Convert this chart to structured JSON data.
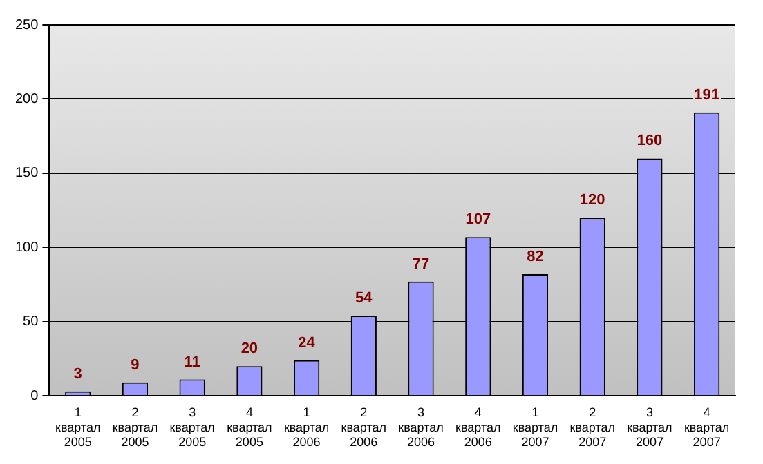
{
  "chart_data": {
    "type": "bar",
    "categories": [
      "1 квартал 2005",
      "2 квартал 2005",
      "3 квартал 2005",
      "4 квартал 2005",
      "1 квартал 2006",
      "2 квартал 2006",
      "3 квартал 2006",
      "4 квартал 2006",
      "1 квартал 2007",
      "2 квартал 2007",
      "3 квартал 2007",
      "4 квартал 2007"
    ],
    "values": [
      3,
      9,
      11,
      20,
      24,
      54,
      77,
      107,
      82,
      120,
      160,
      191
    ],
    "color": "#9999ff",
    "ylim": [
      0,
      250
    ],
    "yticks": [
      0,
      50,
      100,
      150,
      200,
      250
    ],
    "grid": "y",
    "data_labels": true,
    "legend": false
  }
}
